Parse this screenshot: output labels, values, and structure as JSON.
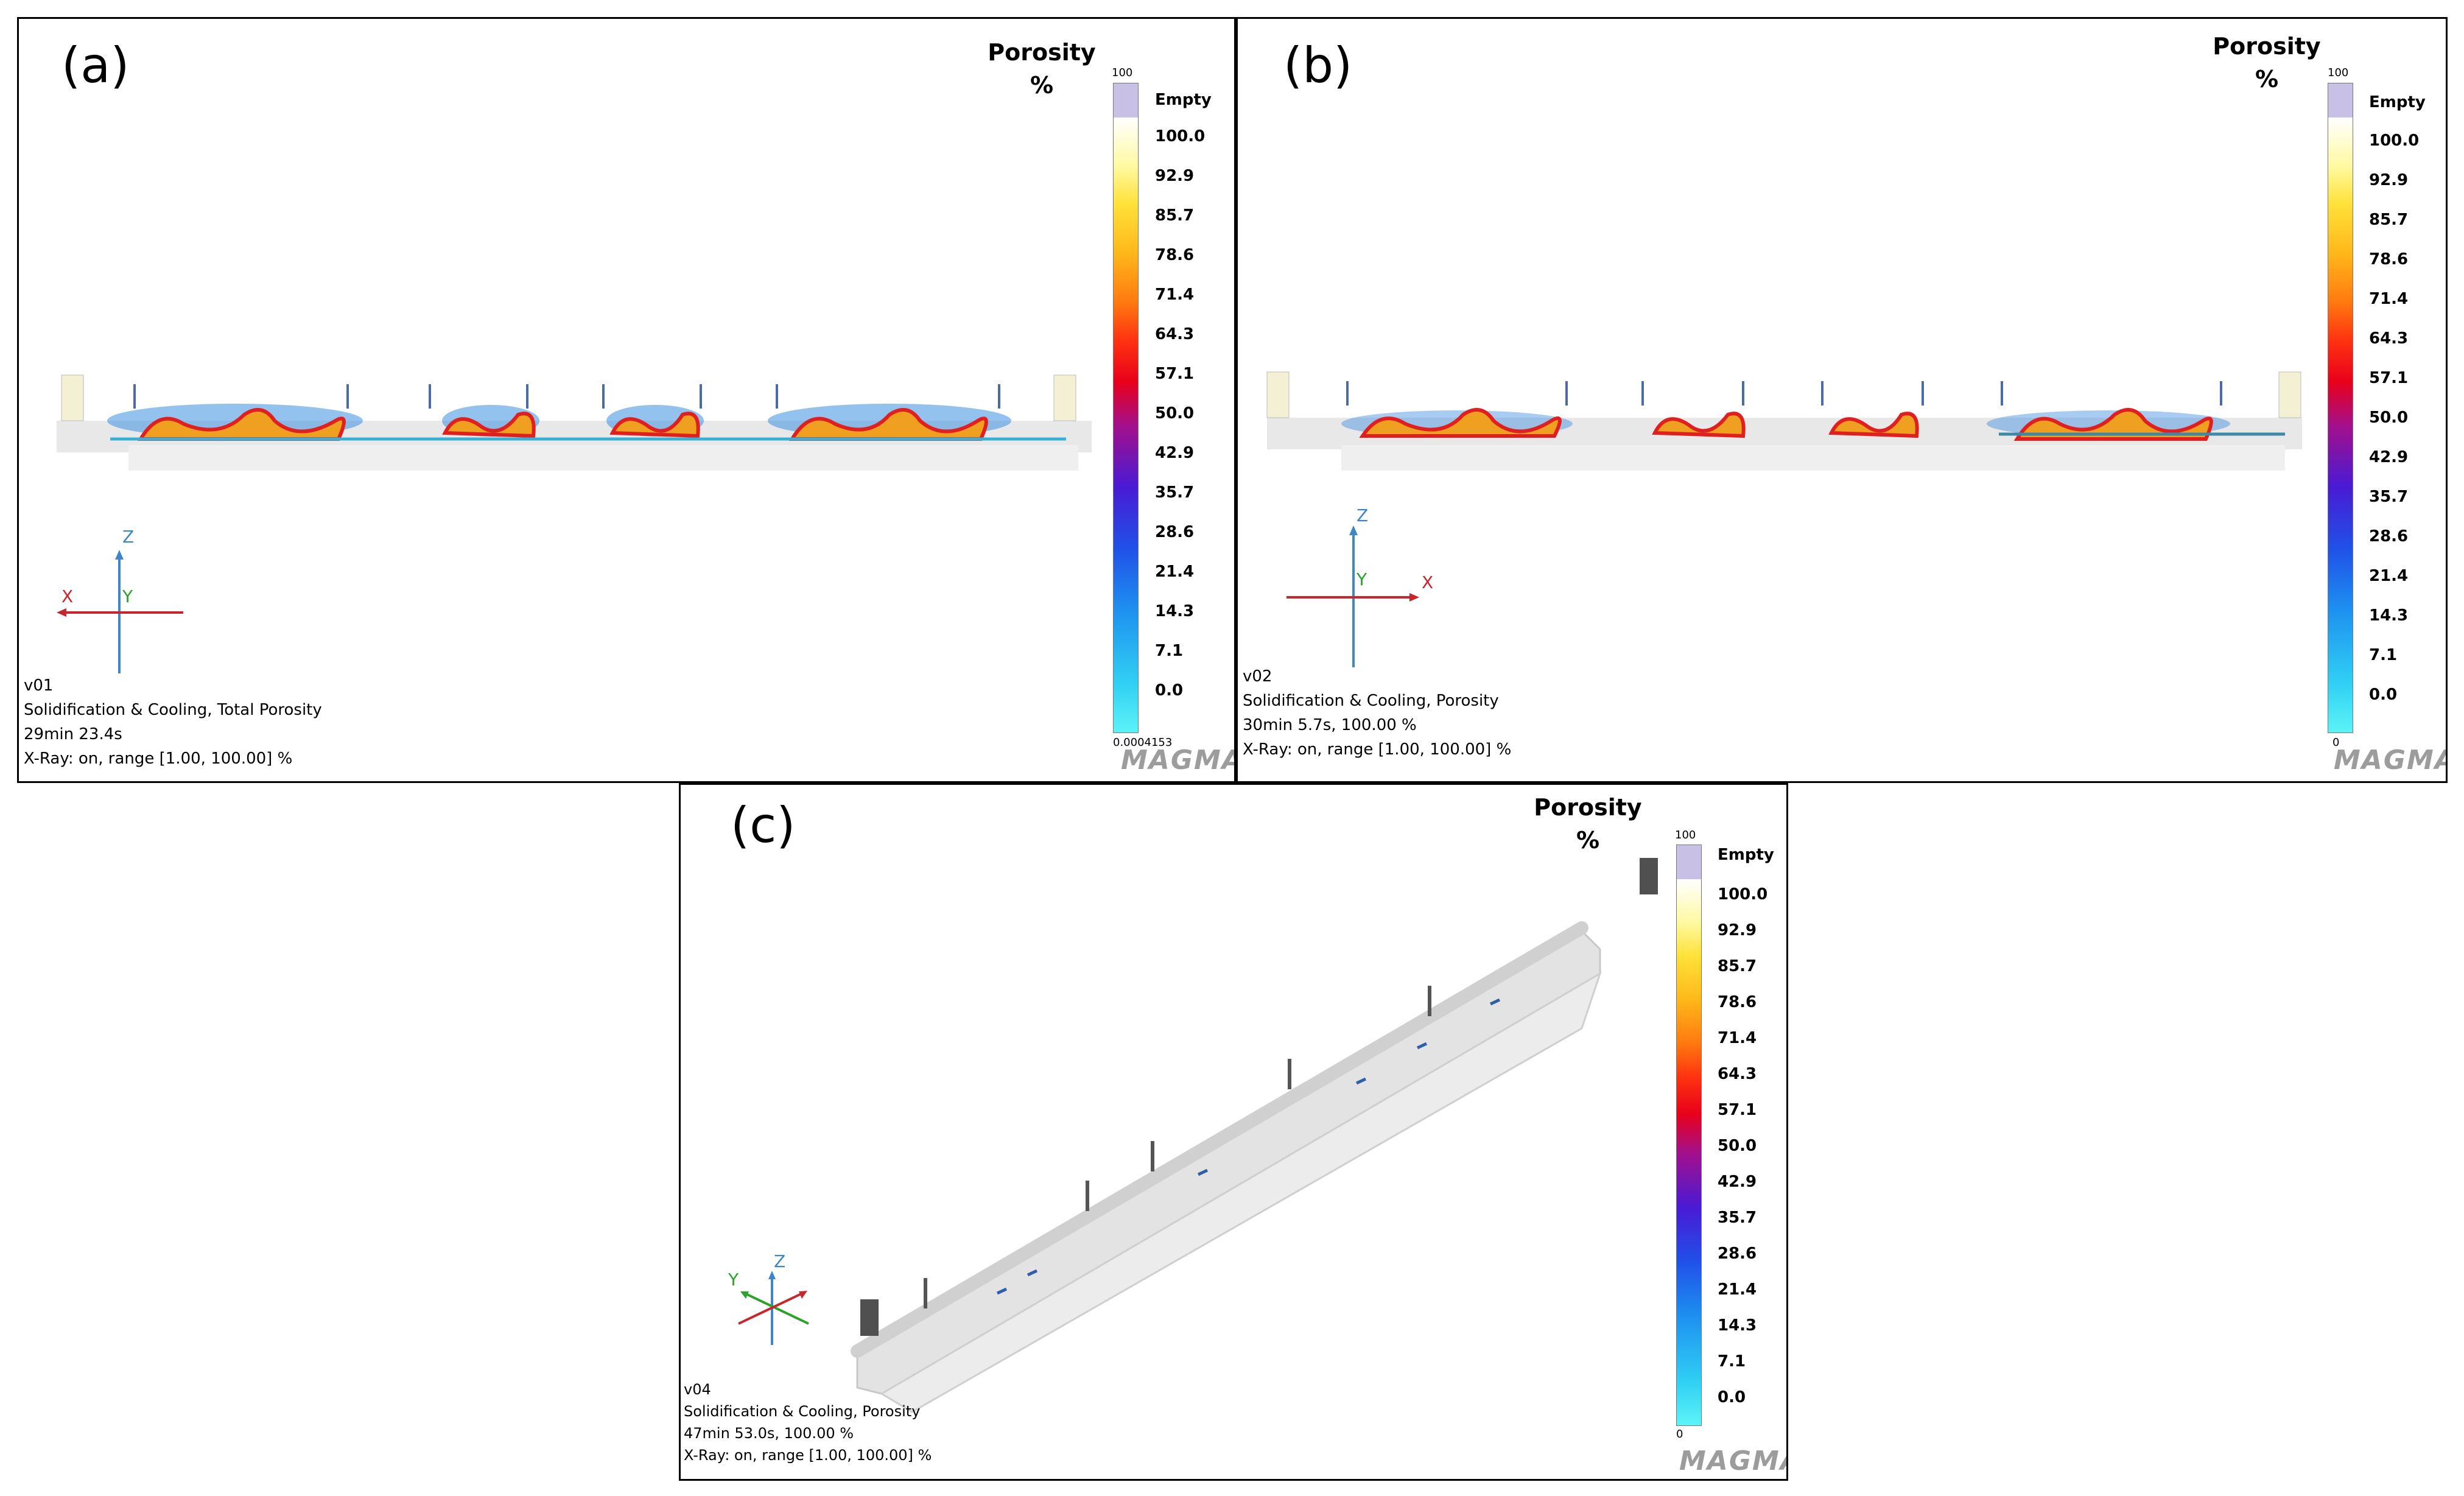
{
  "colorbar": {
    "top_label": "100",
    "empty_label": "Empty",
    "ticks": [
      "100.0",
      "92.9",
      "85.7",
      "78.6",
      "71.4",
      "64.3",
      "57.1",
      "50.0",
      "42.9",
      "35.7",
      "28.6",
      "21.4",
      "14.3",
      "7.1",
      "0.0"
    ]
  },
  "panels": [
    {
      "label": "(a)",
      "title_line1": "Porosity",
      "title_line2": "%",
      "bottom_value": "0.0004153",
      "info": [
        "v01",
        "Solidification & Cooling, Total Porosity",
        "29min 23.4s",
        "X-Ray: on, range [1.00, 100.00] %"
      ],
      "axes": {
        "x": "X",
        "y": "Y",
        "z": "Z"
      },
      "logo": "MAGMA"
    },
    {
      "label": "(b)",
      "title_line1": "Porosity",
      "title_line2": "%",
      "bottom_value": "0",
      "info": [
        "v02",
        "Solidification & Cooling, Porosity",
        "30min 5.7s, 100.00 %",
        "X-Ray: on, range [1.00, 100.00] %"
      ],
      "axes": {
        "x": "X",
        "y": "Y",
        "z": "Z"
      },
      "logo": "MAGMA"
    },
    {
      "label": "(c)",
      "title_line1": "Porosity",
      "title_line2": "%",
      "bottom_value": "0",
      "info": [
        "v04",
        "Solidification & Cooling, Porosity",
        "47min 53.0s, 100.00 %",
        "X-Ray: on, range [1.00, 100.00] %"
      ],
      "axes": {
        "x": "",
        "y": "Y",
        "z": "Z"
      },
      "logo": "MAGMA"
    }
  ],
  "colors": {
    "casting": "#e6e6e6",
    "axis_x": "#c8262c",
    "axis_y": "#2aa32a",
    "axis_z": "#3f86c8",
    "logo_gray": "#9c9c9c",
    "logo_red": "#d4222a"
  }
}
